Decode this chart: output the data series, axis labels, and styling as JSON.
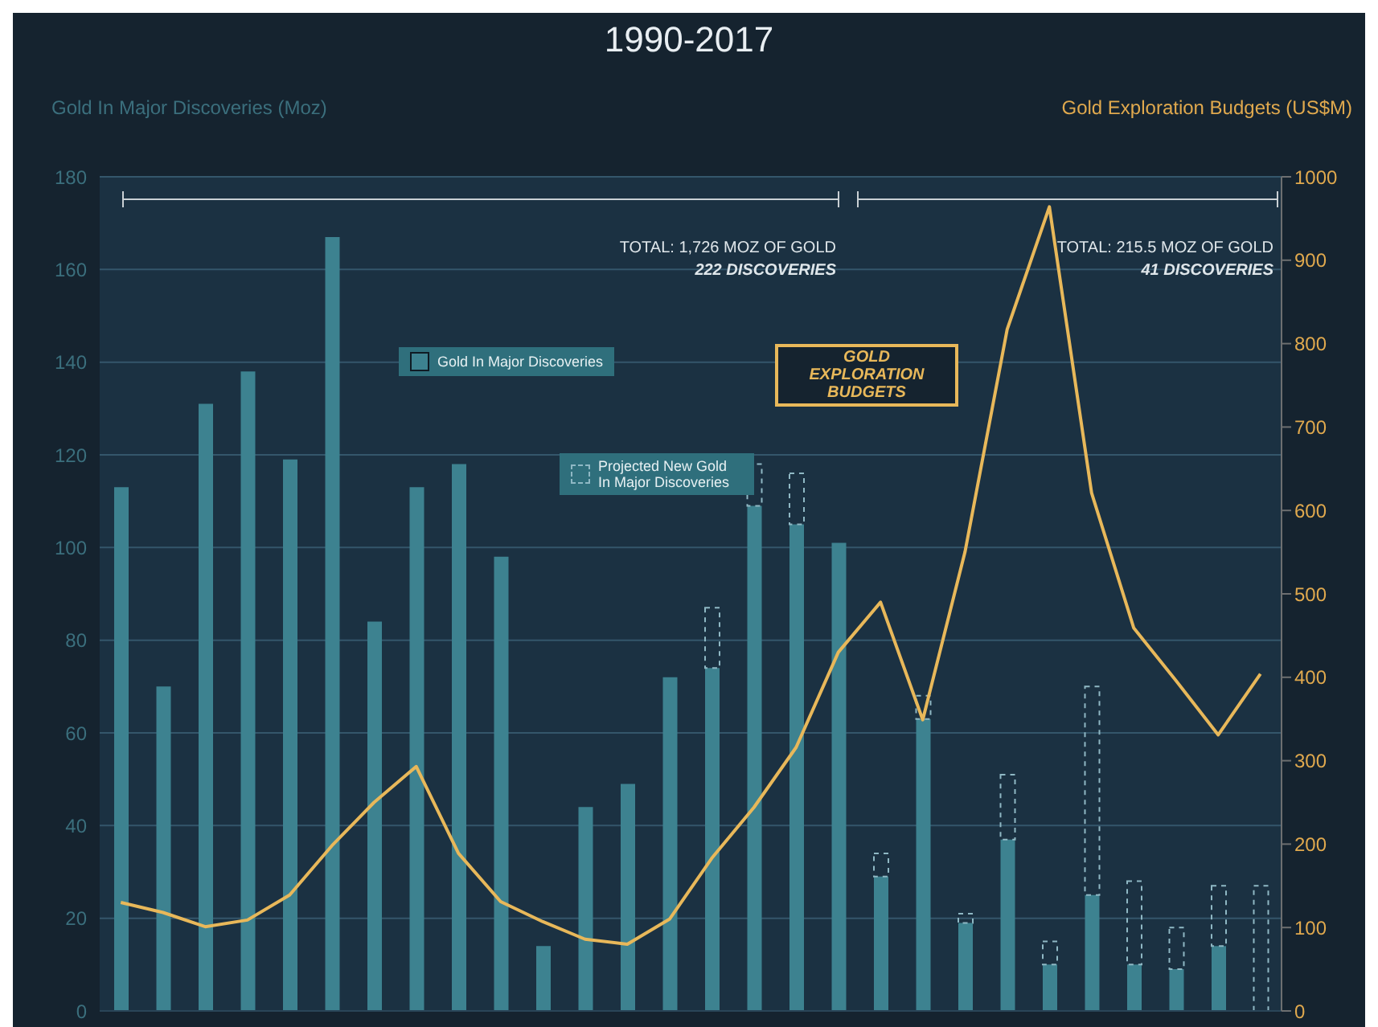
{
  "chart_data": {
    "type": "bar",
    "title": "1990-2017",
    "ylabel": "Gold In Major Discoveries (Moz)",
    "y2label": "Gold Exploration Budgets (US$M)",
    "categories": [
      null,
      null,
      null,
      null,
      null,
      null,
      null,
      null,
      null,
      null,
      null,
      null,
      null,
      null,
      null,
      null,
      null,
      null,
      null,
      null,
      null,
      null,
      null,
      null,
      null,
      null,
      null,
      null
    ],
    "stacked": true,
    "series": [
      {
        "name": "Gold In Major Discoveries",
        "color": "#3d8290",
        "values": [
          113,
          70,
          131,
          138,
          119,
          167,
          84,
          113,
          118,
          98,
          14,
          44,
          49,
          72,
          74,
          109,
          105,
          101,
          29,
          63,
          19,
          37,
          10,
          25,
          10,
          9,
          14,
          0
        ]
      },
      {
        "name": "Projected New Gold In Major Discoveries",
        "color": "#8fb8c4",
        "line_style": "dashed",
        "values": [
          0,
          0,
          0,
          0,
          0,
          0,
          0,
          0,
          0,
          0,
          0,
          0,
          0,
          0,
          13,
          9,
          11,
          0,
          5,
          5,
          2,
          14,
          5,
          45,
          18,
          9,
          13,
          27
        ]
      },
      {
        "name": "GOLD EXPLORATION BUDGETS",
        "type": "line",
        "axis": "y2",
        "color": "#e8b85a",
        "values": [
          130,
          118,
          101,
          109,
          139,
          198,
          250,
          293,
          189,
          131,
          107,
          86,
          80,
          110,
          183,
          244,
          316,
          430,
          490,
          349,
          550,
          817,
          964,
          621,
          459,
          396,
          331,
          404
        ]
      }
    ],
    "ylim": [
      0,
      180
    ],
    "yticks": [
      0,
      20,
      40,
      60,
      80,
      100,
      120,
      140,
      160,
      180
    ],
    "y2lim": [
      0,
      1000
    ],
    "y2ticks": [
      0,
      100,
      200,
      300,
      400,
      500,
      600,
      700,
      800,
      900,
      1000
    ],
    "grid": "y",
    "legend": "top",
    "annotations": [
      "TOTAL: 1,726 MOZ OF GOLD",
      "222 DISCOVERIES",
      "TOTAL: 215.5 MOZ OF GOLD",
      "41 DISCOVERIES"
    ]
  }
}
